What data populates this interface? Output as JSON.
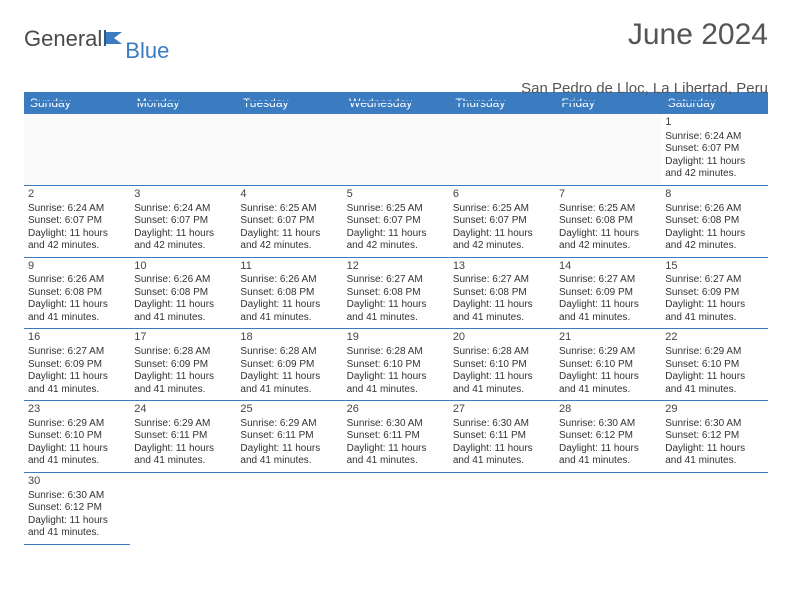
{
  "brand": {
    "part1": "General",
    "part2": "Blue"
  },
  "title": "June 2024",
  "location": "San Pedro de Lloc, La Libertad, Peru",
  "colors": {
    "header_bg": "#3b7bbf",
    "header_text": "#ffffff",
    "text": "#333333",
    "title_text": "#555555",
    "border": "#3b7bbf",
    "background": "#ffffff"
  },
  "weekdays": [
    "Sunday",
    "Monday",
    "Tuesday",
    "Wednesday",
    "Thursday",
    "Friday",
    "Saturday"
  ],
  "days": {
    "1": {
      "sunrise": "6:24 AM",
      "sunset": "6:07 PM",
      "daylight": "11 hours and 42 minutes."
    },
    "2": {
      "sunrise": "6:24 AM",
      "sunset": "6:07 PM",
      "daylight": "11 hours and 42 minutes."
    },
    "3": {
      "sunrise": "6:24 AM",
      "sunset": "6:07 PM",
      "daylight": "11 hours and 42 minutes."
    },
    "4": {
      "sunrise": "6:25 AM",
      "sunset": "6:07 PM",
      "daylight": "11 hours and 42 minutes."
    },
    "5": {
      "sunrise": "6:25 AM",
      "sunset": "6:07 PM",
      "daylight": "11 hours and 42 minutes."
    },
    "6": {
      "sunrise": "6:25 AM",
      "sunset": "6:07 PM",
      "daylight": "11 hours and 42 minutes."
    },
    "7": {
      "sunrise": "6:25 AM",
      "sunset": "6:08 PM",
      "daylight": "11 hours and 42 minutes."
    },
    "8": {
      "sunrise": "6:26 AM",
      "sunset": "6:08 PM",
      "daylight": "11 hours and 42 minutes."
    },
    "9": {
      "sunrise": "6:26 AM",
      "sunset": "6:08 PM",
      "daylight": "11 hours and 41 minutes."
    },
    "10": {
      "sunrise": "6:26 AM",
      "sunset": "6:08 PM",
      "daylight": "11 hours and 41 minutes."
    },
    "11": {
      "sunrise": "6:26 AM",
      "sunset": "6:08 PM",
      "daylight": "11 hours and 41 minutes."
    },
    "12": {
      "sunrise": "6:27 AM",
      "sunset": "6:08 PM",
      "daylight": "11 hours and 41 minutes."
    },
    "13": {
      "sunrise": "6:27 AM",
      "sunset": "6:08 PM",
      "daylight": "11 hours and 41 minutes."
    },
    "14": {
      "sunrise": "6:27 AM",
      "sunset": "6:09 PM",
      "daylight": "11 hours and 41 minutes."
    },
    "15": {
      "sunrise": "6:27 AM",
      "sunset": "6:09 PM",
      "daylight": "11 hours and 41 minutes."
    },
    "16": {
      "sunrise": "6:27 AM",
      "sunset": "6:09 PM",
      "daylight": "11 hours and 41 minutes."
    },
    "17": {
      "sunrise": "6:28 AM",
      "sunset": "6:09 PM",
      "daylight": "11 hours and 41 minutes."
    },
    "18": {
      "sunrise": "6:28 AM",
      "sunset": "6:09 PM",
      "daylight": "11 hours and 41 minutes."
    },
    "19": {
      "sunrise": "6:28 AM",
      "sunset": "6:10 PM",
      "daylight": "11 hours and 41 minutes."
    },
    "20": {
      "sunrise": "6:28 AM",
      "sunset": "6:10 PM",
      "daylight": "11 hours and 41 minutes."
    },
    "21": {
      "sunrise": "6:29 AM",
      "sunset": "6:10 PM",
      "daylight": "11 hours and 41 minutes."
    },
    "22": {
      "sunrise": "6:29 AM",
      "sunset": "6:10 PM",
      "daylight": "11 hours and 41 minutes."
    },
    "23": {
      "sunrise": "6:29 AM",
      "sunset": "6:10 PM",
      "daylight": "11 hours and 41 minutes."
    },
    "24": {
      "sunrise": "6:29 AM",
      "sunset": "6:11 PM",
      "daylight": "11 hours and 41 minutes."
    },
    "25": {
      "sunrise": "6:29 AM",
      "sunset": "6:11 PM",
      "daylight": "11 hours and 41 minutes."
    },
    "26": {
      "sunrise": "6:30 AM",
      "sunset": "6:11 PM",
      "daylight": "11 hours and 41 minutes."
    },
    "27": {
      "sunrise": "6:30 AM",
      "sunset": "6:11 PM",
      "daylight": "11 hours and 41 minutes."
    },
    "28": {
      "sunrise": "6:30 AM",
      "sunset": "6:12 PM",
      "daylight": "11 hours and 41 minutes."
    },
    "29": {
      "sunrise": "6:30 AM",
      "sunset": "6:12 PM",
      "daylight": "11 hours and 41 minutes."
    },
    "30": {
      "sunrise": "6:30 AM",
      "sunset": "6:12 PM",
      "daylight": "11 hours and 41 minutes."
    }
  },
  "layout": {
    "first_weekday_index": 6,
    "num_days": 30,
    "labels": {
      "sunrise": "Sunrise: ",
      "sunset": "Sunset: ",
      "daylight": "Daylight: "
    }
  }
}
